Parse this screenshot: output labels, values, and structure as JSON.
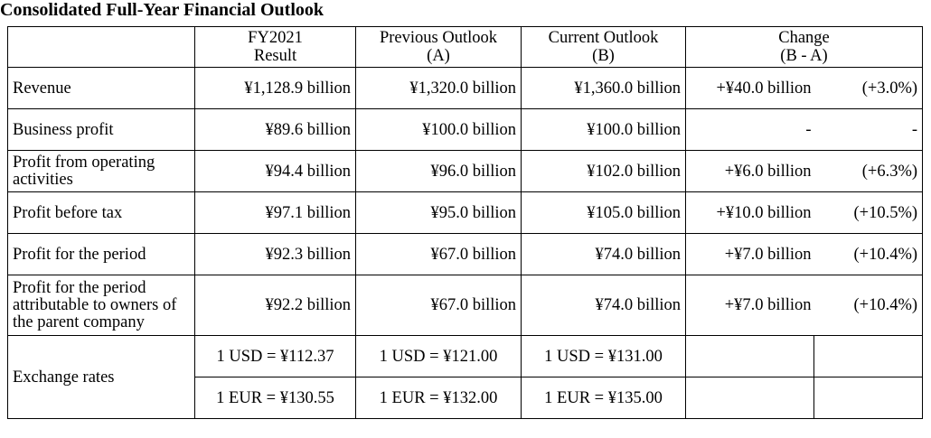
{
  "title": "Consolidated Full-Year Financial Outlook",
  "headers": {
    "col1_line1": "FY2021",
    "col1_line2": "Result",
    "col2_line1": "Previous Outlook",
    "col2_line2": "(A)",
    "col3_line1": "Current Outlook",
    "col3_line2": "(B)",
    "col4_line1": "Change",
    "col4_line2": "(B - A)"
  },
  "rows": [
    {
      "label": "Revenue",
      "fy2021": "¥1,128.9 billion",
      "previous": "¥1,320.0 billion",
      "current": "¥1,360.0 billion",
      "change": "+¥40.0 billion",
      "change_pct": "(+3.0%)"
    },
    {
      "label": "Business profit",
      "fy2021": "¥89.6 billion",
      "previous": "¥100.0 billion",
      "current": "¥100.0 billion",
      "change": "-",
      "change_pct": "-"
    },
    {
      "label": "Profit from operating activities",
      "fy2021": "¥94.4 billion",
      "previous": "¥96.0 billion",
      "current": "¥102.0 billion",
      "change": "+¥6.0 billion",
      "change_pct": "(+6.3%)"
    },
    {
      "label": "Profit before tax",
      "fy2021": "¥97.1 billion",
      "previous": "¥95.0 billion",
      "current": "¥105.0 billion",
      "change": "+¥10.0 billion",
      "change_pct": "(+10.5%)"
    },
    {
      "label": "Profit for the period",
      "fy2021": "¥92.3 billion",
      "previous": "¥67.0 billion",
      "current": "¥74.0 billion",
      "change": "+¥7.0 billion",
      "change_pct": "(+10.4%)"
    },
    {
      "label": "Profit for the period attributable to owners of the parent company",
      "fy2021": "¥92.2 billion",
      "previous": "¥67.0 billion",
      "current": "¥74.0 billion",
      "change": "+¥7.0 billion",
      "change_pct": "(+10.4%)"
    }
  ],
  "exchange_rates": {
    "label": "Exchange rates",
    "usd": {
      "fy2021": "1 USD = ¥112.37",
      "previous": "1 USD = ¥121.00",
      "current": "1 USD = ¥131.00"
    },
    "eur": {
      "fy2021": "1 EUR = ¥130.55",
      "previous": "1 EUR = ¥132.00",
      "current": "1 EUR = ¥135.00"
    }
  }
}
